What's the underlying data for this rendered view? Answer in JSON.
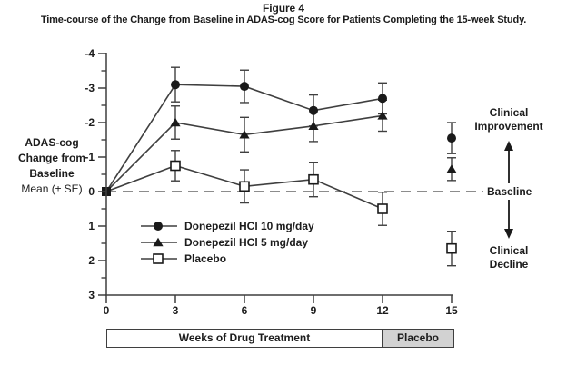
{
  "figure": {
    "title": "Figure 4",
    "subtitle": "Time-course of the Change from Baseline in ADAS-cog Score for Patients Completing the 15-week Study."
  },
  "y_axis_label_lines": [
    "ADAS-cog",
    "Change from",
    "Baseline",
    "Mean (± SE)"
  ],
  "annotations": {
    "improvement1": "Clinical",
    "improvement2": "Improvement",
    "baseline": "Baseline",
    "decline1": "Clinical",
    "decline2": "Decline"
  },
  "footer_boxes": {
    "treatment_label": "Weeks of Drug Treatment",
    "washout_label": "Placebo"
  },
  "colors": {
    "ink": "#3f3f3f",
    "marker": "#1a1a1a",
    "baseline_dash": "#8c8c8c",
    "washout_box_fill": "#d2d2d2",
    "text": "#1c1c1c"
  },
  "chart_data": {
    "type": "line",
    "title": "Figure 4 — Time-course of the Change from Baseline in ADAS-cog Score for Patients Completing the 15-week Study.",
    "xlabel": "Weeks of Drug Treatment",
    "ylabel": "ADAS-cog Change from Baseline Mean (± SE)",
    "x": [
      0,
      3,
      6,
      9,
      12,
      15
    ],
    "x_ticks": [
      0,
      3,
      6,
      9,
      12,
      15
    ],
    "y_ticks": [
      -4,
      -3,
      -2,
      -1,
      0,
      1,
      2,
      3
    ],
    "ylim": [
      -4,
      3
    ],
    "y_axis_inverted": true,
    "y_minor_tick_step": 0.5,
    "baseline_value": 0,
    "drug_treatment_weeks": [
      0,
      12
    ],
    "placebo_washout_weeks": [
      12,
      15
    ],
    "grid": false,
    "legend_position": "inside-lower-left",
    "series": [
      {
        "name": "Donepezil HCl 10 mg/day",
        "marker": "filled-circle",
        "values": [
          0,
          -3.1,
          -3.05,
          -2.35,
          -2.7,
          -1.55
        ],
        "se": [
          0,
          0.5,
          0.47,
          0.45,
          0.45,
          0.45
        ]
      },
      {
        "name": "Donepezil HCl 5 mg/day",
        "marker": "filled-triangle",
        "values": [
          0,
          -2.0,
          -1.65,
          -1.9,
          -2.2,
          -0.65
        ],
        "se": [
          0,
          0.48,
          0.5,
          0.45,
          0.45,
          0.33
        ]
      },
      {
        "name": "Placebo",
        "marker": "open-square",
        "values": [
          0,
          -0.75,
          -0.15,
          -0.35,
          0.5,
          1.65
        ],
        "se": [
          0,
          0.44,
          0.48,
          0.5,
          0.48,
          0.5
        ]
      }
    ]
  }
}
